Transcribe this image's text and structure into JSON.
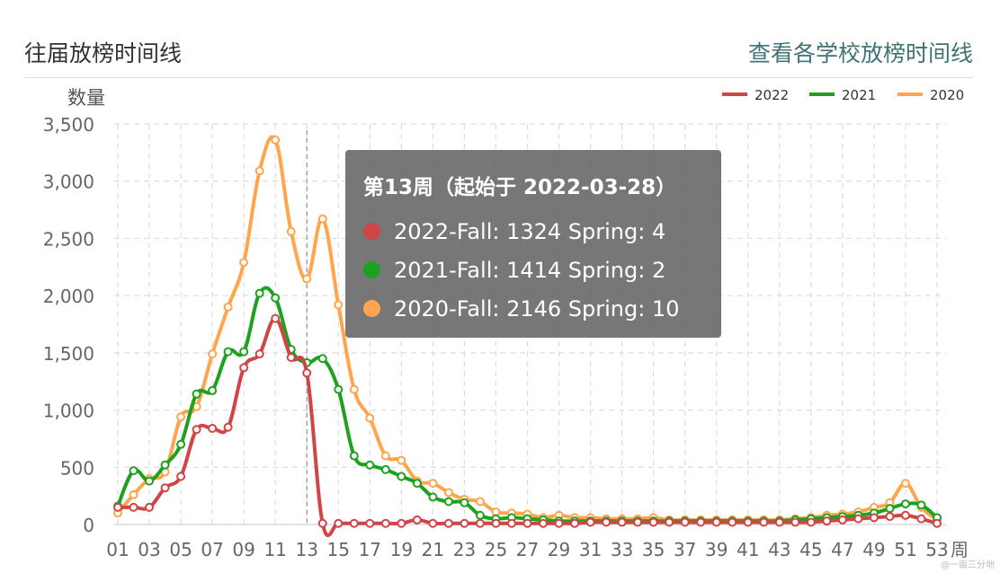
{
  "header": {
    "title": "往届放榜时间线",
    "link_label": "查看各学校放榜时间线"
  },
  "tooltip": {
    "title": "第13周（起始于 2022-03-28）",
    "rows": [
      {
        "label": "2022-Fall: 1324 Spring: 4",
        "color": "#d04545"
      },
      {
        "label": "2021-Fall: 1414 Spring: 2",
        "color": "#1ea11e"
      },
      {
        "label": "2020-Fall: 2146 Spring: 10",
        "color": "#ffa64d"
      }
    ]
  },
  "watermark": "@一亩三分地",
  "chart_data": {
    "type": "line",
    "ylabel": "数量",
    "xlabel": "周",
    "ylim": [
      0,
      3500
    ],
    "yticks": [
      0,
      500,
      1000,
      1500,
      2000,
      2500,
      3000,
      3500
    ],
    "ytick_labels": [
      "0",
      "500",
      "1,000",
      "1,500",
      "2,000",
      "2,500",
      "3,000",
      "3,500"
    ],
    "categories": [
      "01",
      "02",
      "03",
      "04",
      "05",
      "06",
      "07",
      "08",
      "09",
      "10",
      "11",
      "12",
      "13",
      "14",
      "15",
      "16",
      "17",
      "18",
      "19",
      "20",
      "21",
      "22",
      "23",
      "24",
      "25",
      "26",
      "27",
      "28",
      "29",
      "30",
      "31",
      "32",
      "33",
      "34",
      "35",
      "36",
      "37",
      "38",
      "39",
      "40",
      "41",
      "42",
      "43",
      "44",
      "45",
      "46",
      "47",
      "48",
      "49",
      "50",
      "51",
      "52",
      "53"
    ],
    "xtick_labels": [
      "01",
      "",
      "03",
      "",
      "05",
      "",
      "07",
      "",
      "09",
      "",
      "11",
      "",
      "13",
      "",
      "15",
      "",
      "17",
      "",
      "19",
      "",
      "21",
      "",
      "23",
      "",
      "25",
      "",
      "27",
      "",
      "29",
      "",
      "31",
      "",
      "33",
      "",
      "35",
      "",
      "37",
      "",
      "39",
      "",
      "41",
      "",
      "43",
      "",
      "45",
      "",
      "47",
      "",
      "49",
      "",
      "51",
      "",
      "53"
    ],
    "highlight_category": "13",
    "legend_position": "top-right",
    "grid": true,
    "series": [
      {
        "name": "2022",
        "color": "#d04545",
        "values": [
          150,
          150,
          150,
          320,
          420,
          830,
          840,
          850,
          1370,
          1490,
          1800,
          1460,
          1324,
          10,
          10,
          10,
          10,
          10,
          10,
          40,
          10,
          10,
          10,
          10,
          10,
          10,
          10,
          10,
          10,
          10,
          20,
          20,
          20,
          20,
          20,
          20,
          20,
          20,
          20,
          20,
          20,
          20,
          20,
          20,
          20,
          30,
          40,
          50,
          60,
          70,
          80,
          50,
          10
        ]
      },
      {
        "name": "2021",
        "color": "#1ea11e",
        "values": [
          160,
          470,
          380,
          520,
          700,
          1140,
          1170,
          1510,
          1510,
          2020,
          1980,
          1530,
          1414,
          1450,
          1180,
          600,
          520,
          480,
          420,
          360,
          240,
          200,
          190,
          80,
          50,
          60,
          50,
          40,
          30,
          30,
          30,
          30,
          30,
          30,
          30,
          30,
          30,
          30,
          30,
          30,
          30,
          30,
          30,
          40,
          50,
          60,
          70,
          80,
          100,
          140,
          180,
          170,
          60
        ]
      },
      {
        "name": "2020",
        "color": "#ffa64d",
        "values": [
          100,
          260,
          400,
          460,
          940,
          1030,
          1490,
          1900,
          2290,
          3090,
          3360,
          2560,
          2146,
          2670,
          1920,
          1180,
          930,
          600,
          560,
          380,
          360,
          280,
          220,
          200,
          110,
          100,
          90,
          60,
          80,
          60,
          60,
          50,
          50,
          50,
          60,
          40,
          40,
          40,
          40,
          40,
          40,
          40,
          40,
          50,
          60,
          80,
          90,
          110,
          150,
          190,
          360,
          150,
          40
        ]
      }
    ]
  }
}
